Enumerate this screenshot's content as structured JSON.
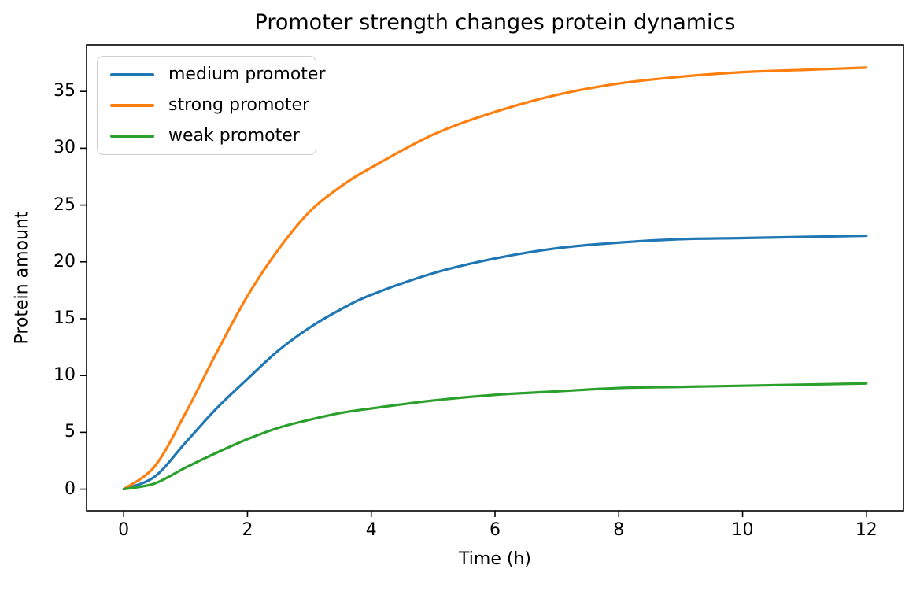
{
  "figure": {
    "title": "Promoter strength changes protein dynamics",
    "xlabel": "Time (h)",
    "ylabel": "Protein amount"
  },
  "chart_data": {
    "type": "line",
    "title": "Promoter strength changes protein dynamics",
    "xlabel": "Time (h)",
    "ylabel": "Protein amount",
    "grid": false,
    "legend_position": "upper left",
    "xlim": [
      -0.6,
      12.6
    ],
    "ylim": [
      -1.9,
      39.1
    ],
    "x_ticks": [
      0,
      2,
      4,
      6,
      8,
      10,
      12
    ],
    "y_ticks": [
      0,
      5,
      10,
      15,
      20,
      25,
      30,
      35
    ],
    "x": [
      0,
      0.5,
      1,
      1.5,
      2,
      2.5,
      3,
      3.5,
      4,
      5,
      6,
      7,
      8,
      9,
      10,
      11,
      12
    ],
    "series": [
      {
        "name": "medium promoter",
        "color": "#1f77b4",
        "values": [
          0,
          1.1,
          4.1,
          7.1,
          9.7,
          12.2,
          14.2,
          15.8,
          17.1,
          19.0,
          20.3,
          21.2,
          21.7,
          22.0,
          22.1,
          22.2,
          22.3
        ]
      },
      {
        "name": "strong promoter",
        "color": "#ff7f0e",
        "values": [
          0,
          2.0,
          6.7,
          12.0,
          17.0,
          21.1,
          24.4,
          26.6,
          28.3,
          31.2,
          33.2,
          34.7,
          35.7,
          36.3,
          36.7,
          36.9,
          37.1
        ]
      },
      {
        "name": "weak promoter",
        "color": "#2ca02c",
        "values": [
          0,
          0.5,
          1.9,
          3.2,
          4.4,
          5.4,
          6.1,
          6.7,
          7.1,
          7.8,
          8.3,
          8.6,
          8.9,
          9.0,
          9.1,
          9.2,
          9.3
        ]
      }
    ]
  }
}
